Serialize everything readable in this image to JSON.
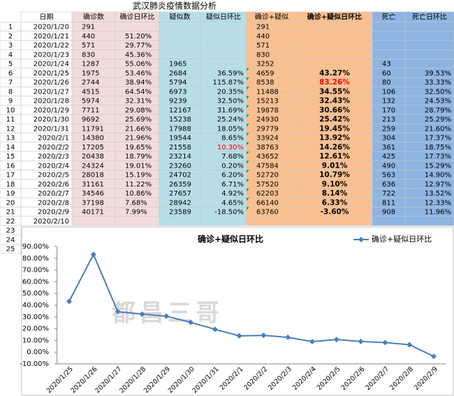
{
  "table": {
    "title": "武汉肺炎疫情数据分析",
    "header": [
      "日期",
      "确诊数",
      "确诊日环比",
      "疑似数",
      "疑似日环比",
      "确诊+疑似",
      "确诊+疑似日环比",
      "死亡",
      "死亡日环比"
    ],
    "row_numbers": [
      1,
      2,
      3,
      4,
      5,
      6,
      7,
      8,
      9,
      10,
      11,
      12,
      13,
      14,
      15,
      16,
      17,
      18,
      19,
      20,
      21,
      22,
      23,
      24,
      25
    ],
    "rows": [
      [
        "2020/1/20",
        291,
        null,
        null,
        null,
        291,
        null,
        null,
        null
      ],
      [
        "2020/1/21",
        440,
        "51.20%",
        null,
        null,
        440,
        null,
        null,
        null
      ],
      [
        "2020/1/22",
        571,
        "29.77%",
        null,
        null,
        571,
        null,
        null,
        null
      ],
      [
        "2020/1/23",
        830,
        "45.36%",
        null,
        null,
        830,
        null,
        null,
        null
      ],
      [
        "2020/1/24",
        1287,
        "55.06%",
        1965,
        null,
        3252,
        null,
        43,
        null
      ],
      [
        "2020/1/25",
        1975,
        "53.46%",
        2684,
        "36.59%",
        4659,
        "43.27%",
        60,
        "39.53%"
      ],
      [
        "2020/1/26",
        2744,
        "38.94%",
        5794,
        "115.87%",
        8538,
        "83.26%",
        80,
        "33.33%"
      ],
      [
        "2020/1/27",
        4515,
        "64.54%",
        6973,
        "20.35%",
        11488,
        "34.55%",
        106,
        "32.50%"
      ],
      [
        "2020/1/28",
        5974,
        "32.31%",
        9239,
        "32.50%",
        15213,
        "32.43%",
        132,
        "24.53%"
      ],
      [
        "2020/1/29",
        7711,
        "29.08%",
        12167,
        "31.69%",
        19878,
        "30.66%",
        170,
        "28.79%"
      ],
      [
        "2020/1/30",
        9692,
        "25.69%",
        15238,
        "25.24%",
        24930,
        "25.42%",
        213,
        "25.29%"
      ],
      [
        "2020/1/31",
        11791,
        "21.66%",
        17988,
        "18.05%",
        29779,
        "19.45%",
        259,
        "21.60%"
      ],
      [
        "2020/2/1",
        14380,
        "21.96%",
        19544,
        "8.65%",
        33924,
        "13.92%",
        304,
        "17.37%"
      ],
      [
        "2020/2/2",
        17205,
        "19.65%",
        21558,
        "10.30%",
        38763,
        "14.26%",
        361,
        "18.75%"
      ],
      [
        "2020/2/3",
        20438,
        "18.79%",
        23214,
        "7.68%",
        43652,
        "12.61%",
        425,
        "17.73%"
      ],
      [
        "2020/2/4",
        24324,
        "19.01%",
        23260,
        "0.20%",
        47584,
        "9.01%",
        490,
        "15.29%"
      ],
      [
        "2020/2/5",
        28018,
        "15.19%",
        24702,
        "6.20%",
        52720,
        "10.79%",
        563,
        "14.90%"
      ],
      [
        "2020/2/6",
        31161,
        "11.22%",
        26359,
        "6.71%",
        57520,
        "9.10%",
        636,
        "12.97%"
      ],
      [
        "2020/2/7",
        34546,
        "10.86%",
        27657,
        "4.92%",
        62203,
        "8.14%",
        722,
        "13.52%"
      ],
      [
        "2020/2/8",
        37198,
        "7.68%",
        28942,
        "4.65%",
        66140,
        "6.33%",
        811,
        "12.33%"
      ],
      [
        "2020/2/9",
        40171,
        "7.99%",
        23589,
        "-18.50%",
        63760,
        "-3.60%",
        908,
        "11.96%"
      ],
      [
        "2020/2/10",
        null,
        null,
        null,
        null,
        null,
        null,
        null,
        null
      ]
    ],
    "column_colors": [
      "#ffffff",
      "#f2dcdb",
      "#f2dcdb",
      "#b7dee8",
      "#b7dee8",
      "#fac090",
      "#fac090",
      "#8db4e2",
      "#8db4e2"
    ]
  },
  "chart_data": {
    "type": "line",
    "title": "确诊+疑似日环比",
    "watermark": "都昌三哥",
    "categories": [
      "2020/1/25",
      "2020/1/26",
      "2020/1/27",
      "2020/1/28",
      "2020/1/29",
      "2020/1/30",
      "2020/1/31",
      "2020/2/1",
      "2020/2/2",
      "2020/2/3",
      "2020/2/4",
      "2020/2/5",
      "2020/2/6",
      "2020/2/7",
      "2020/2/8",
      "2020/2/9"
    ],
    "series": [
      {
        "name": "确诊+疑似日环比",
        "color": "#4a7ebb",
        "values": [
          43.27,
          83.26,
          34.55,
          32.43,
          30.66,
          25.42,
          19.45,
          13.92,
          14.26,
          12.61,
          9.01,
          10.79,
          9.1,
          8.14,
          6.33,
          -3.6
        ]
      }
    ],
    "ylim": [
      -10,
      90
    ],
    "yticks": [
      {
        "value": -10,
        "label": "-10.00%"
      },
      {
        "value": 0,
        "label": "0.00%"
      },
      {
        "value": 10,
        "label": "10.00%"
      },
      {
        "value": 20,
        "label": "20.00%"
      },
      {
        "value": 30,
        "label": "30.00%"
      },
      {
        "value": 40,
        "label": "40.00%"
      },
      {
        "value": 50,
        "label": "50.00%"
      },
      {
        "value": 60,
        "label": "60.00%"
      },
      {
        "value": 70,
        "label": "70.00%"
      },
      {
        "value": 80,
        "label": "80.00%"
      },
      {
        "value": 90,
        "label": "90.00%"
      }
    ],
    "grid": false,
    "legend": "top-right"
  }
}
